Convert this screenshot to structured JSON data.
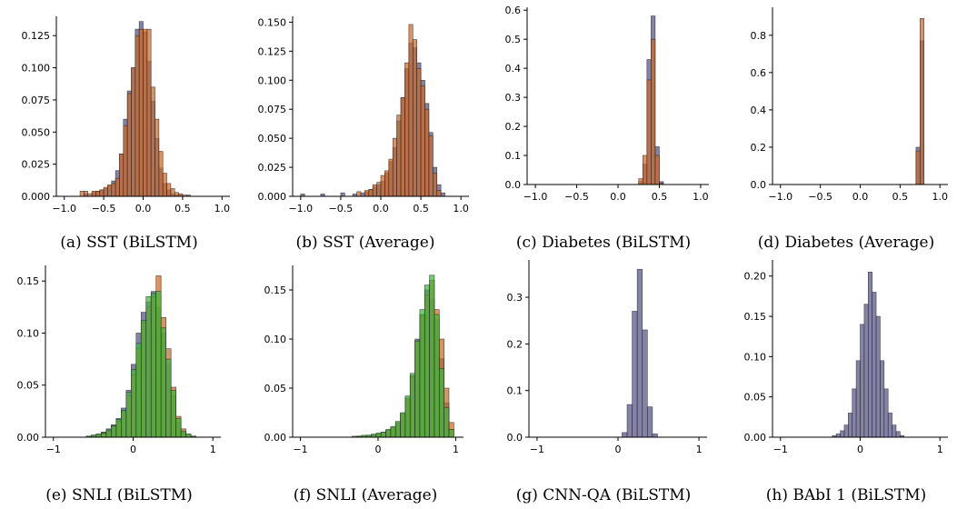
{
  "colors": {
    "purple": "#5a5a8a",
    "orange": "#cc6a28",
    "green": "#3cb83c",
    "bar_edge": "#222222"
  },
  "chart_data": [
    {
      "type": "bar",
      "caption": "(a) SST (BiLSTM)",
      "xlim": [
        -1.1,
        1.1
      ],
      "ylim": [
        0,
        0.14
      ],
      "xticks": [
        -1.0,
        -0.5,
        0.0,
        0.5,
        1.0
      ],
      "xtick_labels": [
        "−1.0",
        "−0.5",
        "0.0",
        "0.5",
        "1.0"
      ],
      "yticks": [
        0,
        0.025,
        0.05,
        0.075,
        0.1,
        0.125
      ],
      "ytick_labels": [
        "0.000",
        "0.025",
        "0.050",
        "0.075",
        "0.100",
        "0.125"
      ],
      "bin_start": -0.8,
      "bin_width": 0.05,
      "series": [
        {
          "color": "purple",
          "values": [
            0,
            0.002,
            0,
            0.003,
            0.004,
            0.005,
            0.006,
            0.008,
            0.012,
            0.02,
            0.033,
            0.06,
            0.082,
            0.1,
            0.13,
            0.136,
            0.128,
            0.105,
            0.074,
            0.045,
            0.022,
            0.01,
            0.005,
            0.002,
            0.001,
            0.001,
            0,
            0.001,
            0,
            0
          ]
        },
        {
          "color": "orange",
          "values": [
            0.004,
            0.004,
            0.002,
            0.004,
            0.004,
            0.005,
            0.007,
            0.009,
            0.01,
            0.014,
            0.033,
            0.055,
            0.08,
            0.1,
            0.125,
            0.13,
            0.13,
            0.13,
            0.085,
            0.06,
            0.035,
            0.018,
            0.01,
            0.006,
            0.003,
            0.002,
            0.001,
            0,
            0,
            0
          ]
        }
      ]
    },
    {
      "type": "bar",
      "caption": "(b) SST (Average)",
      "xlim": [
        -1.1,
        1.1
      ],
      "ylim": [
        0,
        0.155
      ],
      "xticks": [
        -1.0,
        -0.5,
        0.0,
        0.5,
        1.0
      ],
      "xtick_labels": [
        "−1.0",
        "−0.5",
        "0.0",
        "0.5",
        "1.0"
      ],
      "yticks": [
        0,
        0.025,
        0.05,
        0.075,
        0.1,
        0.125,
        0.15
      ],
      "ytick_labels": [
        "0.000",
        "0.025",
        "0.050",
        "0.075",
        "0.100",
        "0.125",
        "0.150"
      ],
      "bin_start": -1.0,
      "bin_width": 0.05,
      "series": [
        {
          "color": "purple",
          "values": [
            0.002,
            0,
            0,
            0,
            0,
            0.002,
            0,
            0,
            0,
            0,
            0.003,
            0,
            0,
            0.002,
            0,
            0.003,
            0.004,
            0.006,
            0.008,
            0.01,
            0.013,
            0.02,
            0.03,
            0.042,
            0.065,
            0.085,
            0.11,
            0.132,
            0.128,
            0.115,
            0.1,
            0.08,
            0.055,
            0.025,
            0.01,
            0.003,
            0,
            0,
            0,
            0
          ]
        },
        {
          "color": "orange",
          "values": [
            0,
            0,
            0,
            0,
            0,
            0,
            0,
            0,
            0,
            0,
            0,
            0,
            0,
            0,
            0.004,
            0,
            0.005,
            0.006,
            0.01,
            0.012,
            0.018,
            0.022,
            0.032,
            0.05,
            0.07,
            0.085,
            0.115,
            0.148,
            0.135,
            0.11,
            0.095,
            0.075,
            0.052,
            0.02,
            0.005,
            0,
            0,
            0,
            0,
            0
          ]
        }
      ]
    },
    {
      "type": "bar",
      "caption": "(c) Diabetes (BiLSTM)",
      "xlim": [
        -1.1,
        1.1
      ],
      "ylim": [
        0,
        0.61
      ],
      "xticks": [
        -1.0,
        -0.5,
        0.0,
        0.5,
        1.0
      ],
      "xtick_labels": [
        "−1.0",
        "−0.5",
        "0.0",
        "0.5",
        "1.0"
      ],
      "yticks": [
        0,
        0.1,
        0.2,
        0.3,
        0.4,
        0.5,
        0.6
      ],
      "ytick_labels": [
        "0.0",
        "0.1",
        "0.2",
        "0.3",
        "0.4",
        "0.5",
        "0.6"
      ],
      "bin_start": 0.25,
      "bin_width": 0.05,
      "series": [
        {
          "color": "purple",
          "values": [
            0.01,
            0.07,
            0.43,
            0.58,
            0.13,
            0.01
          ]
        },
        {
          "color": "orange",
          "values": [
            0.02,
            0.1,
            0.36,
            0.5,
            0.1,
            0.005
          ]
        }
      ]
    },
    {
      "type": "bar",
      "caption": "(d) Diabetes (Average)",
      "xlim": [
        -1.1,
        1.1
      ],
      "ylim": [
        0,
        0.95
      ],
      "xticks": [
        -1.0,
        -0.5,
        0.0,
        0.5,
        1.0
      ],
      "xtick_labels": [
        "−1.0",
        "−0.5",
        "0.0",
        "0.5",
        "1.0"
      ],
      "yticks": [
        0,
        0.2,
        0.4,
        0.6,
        0.8
      ],
      "ytick_labels": [
        "0.0",
        "0.2",
        "0.4",
        "0.6",
        "0.8"
      ],
      "bin_start": 0.7,
      "bin_width": 0.05,
      "series": [
        {
          "color": "purple",
          "values": [
            0.2,
            0.77
          ]
        },
        {
          "color": "orange",
          "values": [
            0.18,
            0.89
          ]
        }
      ]
    },
    {
      "type": "bar",
      "caption": "(e) SNLI (BiLSTM)",
      "xlim": [
        -1.1,
        1.1
      ],
      "ylim": [
        0,
        0.165
      ],
      "xticks": [
        -1,
        0,
        1
      ],
      "xtick_labels": [
        "−1",
        "0",
        "1"
      ],
      "yticks": [
        0,
        0.05,
        0.1,
        0.15
      ],
      "ytick_labels": [
        "0.00",
        "0.05",
        "0.10",
        "0.15"
      ],
      "bin_start": -0.65,
      "bin_width": 0.0625,
      "series": [
        {
          "color": "purple",
          "values": [
            0,
            0,
            0.002,
            0.003,
            0.005,
            0.008,
            0.012,
            0.018,
            0.028,
            0.045,
            0.07,
            0.1,
            0.12,
            0.13,
            0.14,
            0.125,
            0.1,
            0.07,
            0.04,
            0.015,
            0.005,
            0.002,
            0.001,
            0,
            0
          ]
        },
        {
          "color": "orange",
          "values": [
            0,
            0.001,
            0.001,
            0.002,
            0.004,
            0.006,
            0.01,
            0.015,
            0.025,
            0.04,
            0.06,
            0.085,
            0.11,
            0.125,
            0.135,
            0.155,
            0.115,
            0.085,
            0.048,
            0.02,
            0.008,
            0.003,
            0.001,
            0,
            0
          ]
        },
        {
          "color": "green",
          "values": [
            0,
            0.001,
            0.002,
            0.003,
            0.004,
            0.007,
            0.011,
            0.017,
            0.026,
            0.043,
            0.065,
            0.09,
            0.112,
            0.135,
            0.138,
            0.14,
            0.105,
            0.075,
            0.045,
            0.018,
            0.006,
            0.003,
            0.001,
            0,
            0
          ]
        }
      ]
    },
    {
      "type": "bar",
      "caption": "(f) SNLI (Average)",
      "xlim": [
        -1.1,
        1.1
      ],
      "ylim": [
        0,
        0.175
      ],
      "xticks": [
        -1,
        0,
        1
      ],
      "xtick_labels": [
        "−1",
        "0",
        "1"
      ],
      "yticks": [
        0,
        0.05,
        0.1,
        0.15
      ],
      "ytick_labels": [
        "0.00",
        "0.05",
        "0.10",
        "0.15"
      ],
      "bin_start": -0.4,
      "bin_width": 0.0625,
      "series": [
        {
          "color": "purple",
          "values": [
            0,
            0,
            0.001,
            0.001,
            0.002,
            0.003,
            0.004,
            0.005,
            0.007,
            0.01,
            0.015,
            0.024,
            0.04,
            0.063,
            0.1,
            0.125,
            0.15,
            0.14,
            0.12,
            0.08,
            0.035,
            0.008,
            0
          ]
        },
        {
          "color": "orange",
          "values": [
            0,
            0,
            0.001,
            0.001,
            0.002,
            0.002,
            0.003,
            0.005,
            0.007,
            0.01,
            0.015,
            0.024,
            0.04,
            0.062,
            0.098,
            0.124,
            0.145,
            0.16,
            0.13,
            0.1,
            0.05,
            0.015,
            0
          ]
        },
        {
          "color": "green",
          "values": [
            0,
            0.001,
            0.001,
            0.002,
            0.002,
            0.003,
            0.004,
            0.005,
            0.008,
            0.011,
            0.016,
            0.025,
            0.042,
            0.065,
            0.098,
            0.13,
            0.155,
            0.165,
            0.125,
            0.07,
            0.03,
            0.008,
            0
          ]
        }
      ]
    },
    {
      "type": "bar",
      "caption": "(g) CNN-QA (BiLSTM)",
      "xlim": [
        -1.1,
        1.1
      ],
      "ylim": [
        0,
        0.38
      ],
      "xticks": [
        -1,
        0,
        1
      ],
      "xtick_labels": [
        "−1",
        "0",
        "1"
      ],
      "yticks": [
        0,
        0.1,
        0.2,
        0.3
      ],
      "ytick_labels": [
        "0.0",
        "0.1",
        "0.2",
        "0.3"
      ],
      "bin_start": 0.05,
      "bin_width": 0.0625,
      "series": [
        {
          "color": "purple",
          "values": [
            0.01,
            0.07,
            0.27,
            0.36,
            0.23,
            0.065,
            0.007
          ]
        }
      ]
    },
    {
      "type": "bar",
      "caption": "(h) BAbI 1 (BiLSTM)",
      "xlim": [
        -1.1,
        1.1
      ],
      "ylim": [
        0,
        0.22
      ],
      "xticks": [
        -1,
        0,
        1
      ],
      "xtick_labels": [
        "−1",
        "0",
        "1"
      ],
      "yticks": [
        0,
        0.05,
        0.1,
        0.15,
        0.2
      ],
      "ytick_labels": [
        "0.00",
        "0.05",
        "0.10",
        "0.15",
        "0.20"
      ],
      "bin_start": -0.35,
      "bin_width": 0.05,
      "series": [
        {
          "color": "purple",
          "values": [
            0.002,
            0.004,
            0.008,
            0.015,
            0.03,
            0.06,
            0.095,
            0.14,
            0.165,
            0.205,
            0.18,
            0.15,
            0.095,
            0.06,
            0.03,
            0.015,
            0.007,
            0.002
          ]
        }
      ]
    }
  ]
}
